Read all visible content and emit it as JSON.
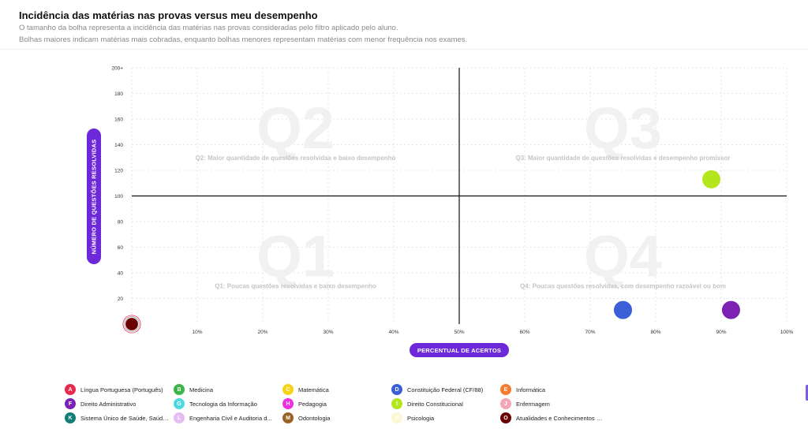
{
  "header": {
    "title": "Incidência das matérias nas provas versus meu desempenho",
    "subtitle_1": "O tamanho da bolha representa a incidência das matérias nas provas consideradas pelo filtro aplicado pelo aluno.",
    "subtitle_2": "Bolhas maiores indicam matérias mais cobradas, enquanto bolhas menores representam matérias com menor frequência nos exames."
  },
  "chart_data": {
    "type": "scatter",
    "variant": "bubble-quadrant",
    "xlabel": "PERCENTUAL DE ACERTOS",
    "ylabel": "NÚMERO DE QUESTÕES RESOLVIDAS",
    "xlim": [
      0,
      100
    ],
    "ylim": [
      0,
      200
    ],
    "x_ticks": [
      {
        "value": 10,
        "label": "10%"
      },
      {
        "value": 20,
        "label": "20%"
      },
      {
        "value": 30,
        "label": "30%"
      },
      {
        "value": 40,
        "label": "40%"
      },
      {
        "value": 50,
        "label": "50%"
      },
      {
        "value": 60,
        "label": "60%"
      },
      {
        "value": 70,
        "label": "70%"
      },
      {
        "value": 80,
        "label": "80%"
      },
      {
        "value": 90,
        "label": "90%"
      },
      {
        "value": 100,
        "label": "100%"
      }
    ],
    "y_ticks": [
      {
        "value": 20,
        "label": "20"
      },
      {
        "value": 40,
        "label": "40"
      },
      {
        "value": 60,
        "label": "60"
      },
      {
        "value": 80,
        "label": "80"
      },
      {
        "value": 100,
        "label": "100"
      },
      {
        "value": 120,
        "label": "120"
      },
      {
        "value": 140,
        "label": "140"
      },
      {
        "value": 160,
        "label": "160"
      },
      {
        "value": 180,
        "label": "180"
      },
      {
        "value": 200,
        "label": "200+"
      }
    ],
    "grid": true,
    "divider_x": 50,
    "divider_y": 100,
    "quadrants": [
      {
        "watermark": "Q2",
        "caption": "Q2: Maior quantidade de questões resolvidas e baixo desempenho",
        "x_range": [
          0,
          50
        ],
        "y_range": [
          100,
          200
        ]
      },
      {
        "watermark": "Q3",
        "caption": "Q3: Maior quantidade de questões resolvidas e desempenho promissor",
        "x_range": [
          50,
          100
        ],
        "y_range": [
          100,
          200
        ]
      },
      {
        "watermark": "Q1",
        "caption": "Q1: Poucas questões resolvidas e baixo desempenho",
        "x_range": [
          0,
          50
        ],
        "y_range": [
          0,
          100
        ]
      },
      {
        "watermark": "Q4",
        "caption": "Q4: Poucas questões resolvidas, com desempenho razoável ou bom",
        "x_range": [
          50,
          100
        ],
        "y_range": [
          0,
          100
        ]
      }
    ],
    "points": [
      {
        "x": 88.5,
        "y": 113,
        "size": 1,
        "color": "#b5e61d"
      },
      {
        "x": 75,
        "y": 11,
        "size": 1,
        "color": "#3b5fd6"
      },
      {
        "x": 91.5,
        "y": 11,
        "size": 1,
        "color": "#7b22b4"
      },
      {
        "x": 0,
        "y": 0,
        "size": 1,
        "color": "#e8294c"
      },
      {
        "x": 0,
        "y": 0,
        "size": 0.85,
        "color": "#9a9a9a"
      },
      {
        "x": 0,
        "y": 0,
        "size": 0.7,
        "color": "#6b0000"
      }
    ]
  },
  "legend": [
    {
      "badge": "A",
      "label": "Língua Portuguesa (Português)",
      "color": "#e8294c"
    },
    {
      "badge": "B",
      "label": "Medicina",
      "color": "#3bb54a"
    },
    {
      "badge": "C",
      "label": "Matemática",
      "color": "#f7d316"
    },
    {
      "badge": "D",
      "label": "Constituição Federal (CF/88)",
      "color": "#3b5fd6"
    },
    {
      "badge": "E",
      "label": "Informática",
      "color": "#f47c2c"
    },
    {
      "badge": "F",
      "label": "Direito Administrativo",
      "color": "#7b22b4"
    },
    {
      "badge": "G",
      "label": "Tecnologia da Informação",
      "color": "#4dd9e0"
    },
    {
      "badge": "H",
      "label": "Pedagogia",
      "color": "#ee2fe0"
    },
    {
      "badge": "I",
      "label": "Direito Constitucional",
      "color": "#b5e61d"
    },
    {
      "badge": "J",
      "label": "Enfermagem",
      "color": "#f5a6b3"
    },
    {
      "badge": "K",
      "label": "Sistema Único de Saúde, Saúde ...",
      "color": "#0f7d78"
    },
    {
      "badge": "L",
      "label": "Engenharia Civil e Auditoria d...",
      "color": "#e6bdf3"
    },
    {
      "badge": "M",
      "label": "Odontologia",
      "color": "#9a6326"
    },
    {
      "badge": "N",
      "label": "Psicologia",
      "color": "#fdf7d2"
    },
    {
      "badge": "O",
      "label": "Atualidades e Conhecimentos Ge...",
      "color": "#6b0000"
    }
  ]
}
